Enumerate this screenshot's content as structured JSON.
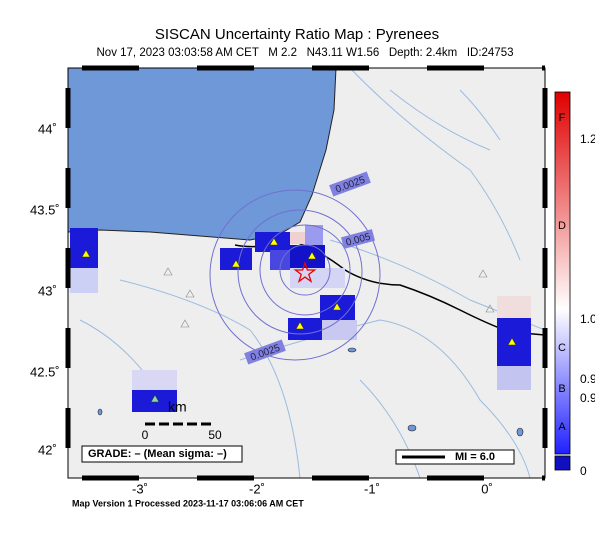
{
  "header": {
    "title": "SISCAN Uncertainty Ratio Map : Pyrenees",
    "subtitle": "Nov 17, 2023 03:03:58 AM CET   M 2.2   N43.11 W1.56   Depth: 2.4km   ID:24753"
  },
  "map": {
    "lat_labels": [
      "44˚",
      "43.5˚",
      "43˚",
      "42.5˚",
      "42˚"
    ],
    "lon_labels": [
      "-3˚",
      "-2˚",
      "-1˚",
      "0˚"
    ],
    "contour_labels": [
      "0.0025",
      "0.005",
      "0.0025"
    ],
    "scale": {
      "unit": "km",
      "start": "0",
      "end": "50"
    },
    "grade": "GRADE: – (Mean sigma: –)",
    "mi": "MI = 6.0"
  },
  "colorbar": {
    "grades": [
      "F",
      "D",
      "C",
      "B",
      "A"
    ],
    "values": [
      "1.2",
      "1.0",
      "0.9",
      "0.9",
      "0"
    ]
  },
  "footer": "Map Version 1 Processed 2023-11-17 03:06:06 AM CET"
}
